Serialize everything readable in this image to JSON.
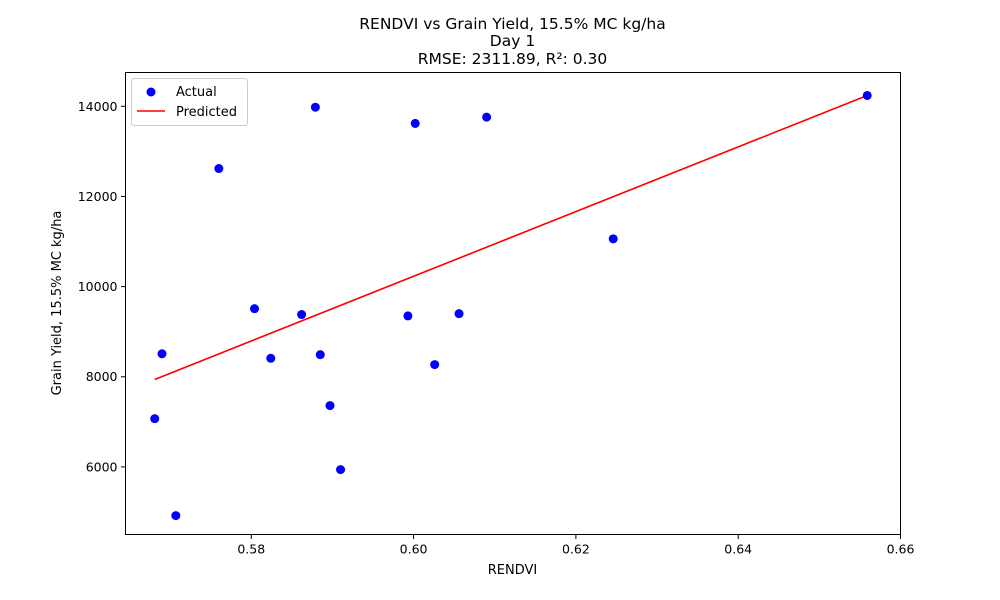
{
  "chart_data": {
    "type": "scatter",
    "title_lines": [
      "RENDVI vs Grain Yield, 15.5% MC kg/ha",
      "Day 1",
      "RMSE: 2311.89, R²: 0.30"
    ],
    "xlabel": "RENDVI",
    "ylabel": "Grain Yield, 15.5% MC kg/ha",
    "xlim": [
      0.5645,
      0.66
    ],
    "ylim": [
      4500,
      14750
    ],
    "x_ticks": [
      0.58,
      0.6,
      0.62,
      0.64,
      0.66
    ],
    "x_tick_labels": [
      "0.58",
      "0.60",
      "0.62",
      "0.64",
      "0.66"
    ],
    "y_ticks": [
      6000,
      8000,
      10000,
      12000,
      14000
    ],
    "y_tick_labels": [
      "6000",
      "8000",
      "10000",
      "12000",
      "14000"
    ],
    "grid": false,
    "legend_position": "upper-left",
    "legend": {
      "actual_label": "Actual",
      "predicted_label": "Predicted"
    },
    "series": [
      {
        "name": "Actual",
        "kind": "scatter",
        "color": "#0000ff",
        "points": [
          [
            0.5681,
            7070
          ],
          [
            0.569,
            8510
          ],
          [
            0.5707,
            4920
          ],
          [
            0.576,
            12620
          ],
          [
            0.5804,
            9510
          ],
          [
            0.5824,
            8410
          ],
          [
            0.5862,
            9380
          ],
          [
            0.5879,
            13980
          ],
          [
            0.5885,
            8490
          ],
          [
            0.5897,
            7360
          ],
          [
            0.591,
            5940
          ],
          [
            0.5993,
            9350
          ],
          [
            0.6002,
            13620
          ],
          [
            0.6026,
            8270
          ],
          [
            0.6056,
            9400
          ],
          [
            0.609,
            13760
          ],
          [
            0.6246,
            11060
          ],
          [
            0.6559,
            14240
          ]
        ]
      },
      {
        "name": "Predicted",
        "kind": "line",
        "color": "#ff0000",
        "points": [
          [
            0.5681,
            7940
          ],
          [
            0.6559,
            14240
          ]
        ]
      }
    ]
  }
}
